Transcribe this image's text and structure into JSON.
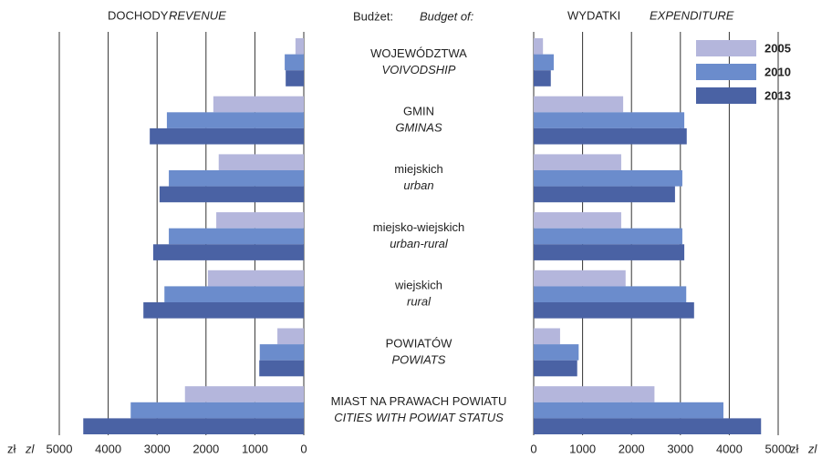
{
  "chart_data": {
    "type": "butterfly_bar",
    "center_title": "Budżet:",
    "center_title_en": "Budget of:",
    "unit": "zł",
    "unit_en": "zl",
    "categories": [
      {
        "pl": "WOJEWÓDZTWA",
        "en": "VOIVODSHIP"
      },
      {
        "pl": "GMIN",
        "en": "GMINAS"
      },
      {
        "pl": "miejskich",
        "en": "urban"
      },
      {
        "pl": "miejsko-wiejskich",
        "en": "urban-rural"
      },
      {
        "pl": "wiejskich",
        "en": "rural"
      },
      {
        "pl": "POWIATÓW",
        "en": "POWIATS"
      },
      {
        "pl": "MIAST NA PRAWACH POWIATU",
        "en": "CITIES WITH POWIAT STATUS"
      }
    ],
    "legend": "upper right",
    "grid": true,
    "panels": [
      {
        "title": "DOCHODY",
        "title_en": "REVENUE",
        "direction": "left",
        "xlim": [
          0,
          5000
        ],
        "xticks": [
          5000,
          4000,
          3000,
          2000,
          1000,
          0
        ],
        "series": [
          {
            "name": "2005",
            "color": "#b4b6dc",
            "values": [
              170,
              1850,
              1740,
              1790,
              1960,
              540,
              2430
            ]
          },
          {
            "name": "2010",
            "color": "#6b8ccc",
            "values": [
              390,
              2800,
              2760,
              2760,
              2850,
              900,
              3540
            ]
          },
          {
            "name": "2013",
            "color": "#4a62a4",
            "values": [
              370,
              3150,
              2950,
              3080,
              3280,
              910,
              4510
            ]
          }
        ]
      },
      {
        "title": "WYDATKI",
        "title_en": "EXPENDITURE",
        "direction": "right",
        "xlim": [
          0,
          5000
        ],
        "xticks": [
          0,
          1000,
          2000,
          3000,
          4000,
          5000
        ],
        "series": [
          {
            "name": "2005",
            "color": "#b4b6dc",
            "values": [
              190,
              1830,
              1790,
              1790,
              1880,
              540,
              2470
            ]
          },
          {
            "name": "2010",
            "color": "#6b8ccc",
            "values": [
              410,
              3080,
              3040,
              3040,
              3120,
              920,
              3880
            ]
          },
          {
            "name": "2013",
            "color": "#4a62a4",
            "values": [
              350,
              3130,
              2890,
              3080,
              3280,
              890,
              4650
            ]
          }
        ]
      }
    ]
  }
}
